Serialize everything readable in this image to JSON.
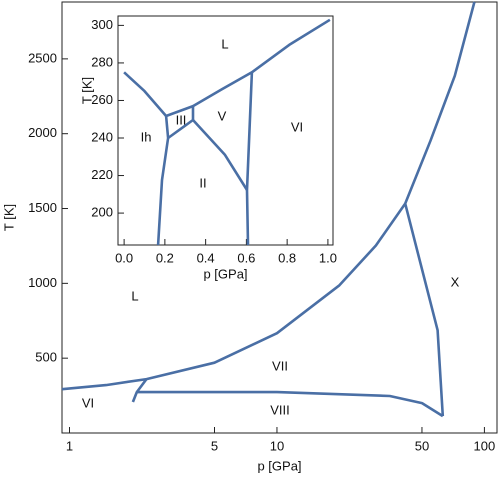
{
  "chart_data": [
    {
      "type": "line",
      "xlabel": "p  [GPa]",
      "ylabel": "T [K]",
      "log_x": true,
      "xlim": [
        0.92,
        115
      ],
      "ylim": [
        0,
        2880
      ],
      "xticks": [
        1,
        5,
        10,
        50,
        100
      ],
      "yticks": [
        500,
        1000,
        1500,
        2000,
        2500
      ],
      "labels": [
        "L",
        "VII",
        "VIII",
        "VI",
        "X"
      ],
      "series": [
        {
          "color": "#4a6fa5",
          "x": [
            0.92,
            1.5,
            2.35,
            5,
            10,
            20,
            30,
            41.5,
            55,
            72,
            89.5
          ],
          "values": [
            293,
            320,
            360,
            470,
            667,
            987,
            1253,
            1533,
            1953,
            2387,
            2880
          ]
        },
        {
          "color": "#4a6fa5",
          "x": [
            41.5,
            59.5,
            63
          ],
          "values": [
            1533,
            687,
            113
          ]
        },
        {
          "color": "#4a6fa5",
          "x": [
            2.11,
            10,
            35,
            50,
            63
          ],
          "values": [
            273,
            273,
            247,
            200,
            113
          ]
        },
        {
          "color": "#4a6fa5",
          "x": [
            2.35,
            2.11,
            2.02
          ],
          "values": [
            360,
            273,
            207
          ]
        }
      ]
    },
    {
      "type": "line",
      "xlabel": "p  [GPa]",
      "ylabel": "T [K]",
      "log_x": false,
      "xlim": [
        -0.03,
        1.025
      ],
      "ylim": [
        183,
        305
      ],
      "xticks": [
        {
          "value": 0,
          "label": "0.0"
        },
        0.2,
        0.4,
        0.6,
        0.8,
        {
          "value": 1,
          "label": "1.0"
        }
      ],
      "yticks": [
        200,
        220,
        240,
        260,
        280,
        300
      ],
      "labels": [
        "L",
        "Ih",
        "III",
        "V",
        "VI",
        "II"
      ],
      "series": [
        {
          "color": "#4a6fa5",
          "x": [
            0,
            0.1,
            0.206
          ],
          "values": [
            275,
            265,
            251.7
          ]
        },
        {
          "color": "#4a6fa5",
          "x": [
            0.206,
            0.338,
            0.48,
            0.627,
            0.81,
            1.01
          ],
          "values": [
            251.7,
            257,
            266,
            275,
            289.6,
            303
          ]
        },
        {
          "color": "#4a6fa5",
          "x": [
            0.206,
            0.216,
            0.186,
            0.167
          ],
          "values": [
            251.7,
            240,
            217.6,
            183
          ]
        },
        {
          "color": "#4a6fa5",
          "x": [
            0.216,
            0.338,
            0.338
          ],
          "values": [
            240,
            249.6,
            257
          ]
        },
        {
          "color": "#4a6fa5",
          "x": [
            0.338,
            0.495,
            0.603
          ],
          "values": [
            249.6,
            231,
            212.3
          ]
        },
        {
          "color": "#4a6fa5",
          "x": [
            0.627,
            0.603,
            0.608
          ],
          "values": [
            275,
            212.3,
            183
          ]
        }
      ]
    }
  ]
}
